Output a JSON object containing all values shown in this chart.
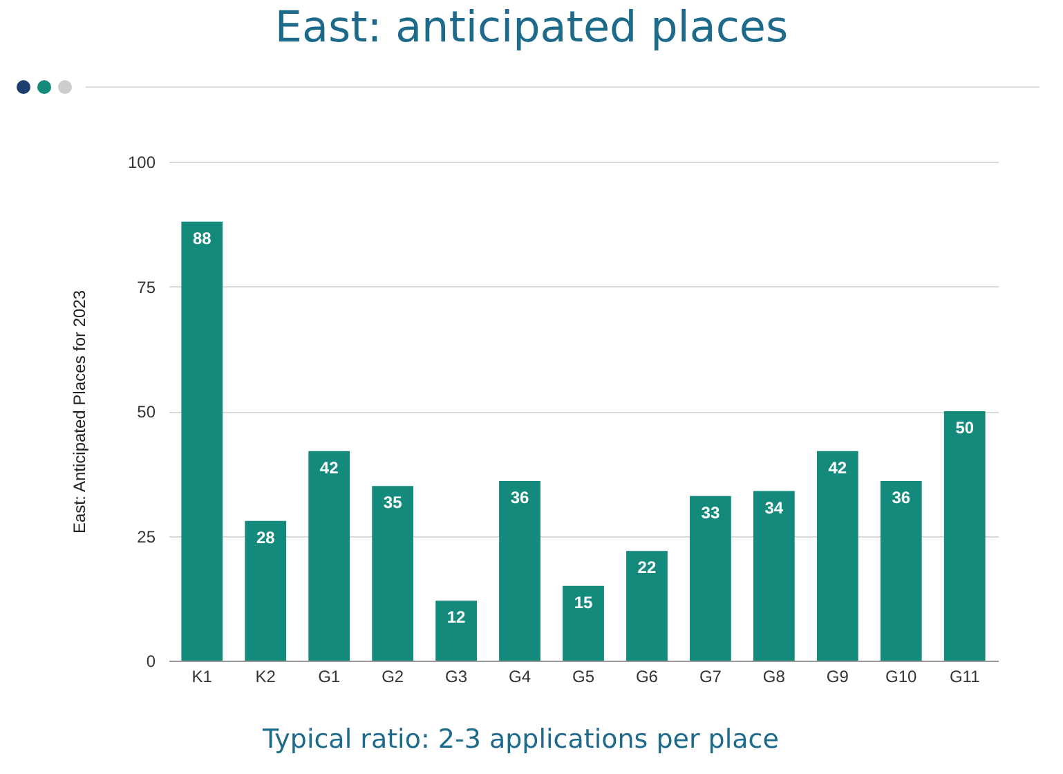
{
  "chart_data": {
    "type": "bar",
    "title": "East: anticipated places",
    "ylabel": "East: Anticipated Places for 2023",
    "categories": [
      "K1",
      "K2",
      "G1",
      "G2",
      "G3",
      "G4",
      "G5",
      "G6",
      "G7",
      "G8",
      "G9",
      "G10",
      "G11"
    ],
    "values": [
      88,
      28,
      42,
      35,
      12,
      36,
      15,
      22,
      33,
      34,
      42,
      36,
      50
    ],
    "color": "#138a7c",
    "ylim": [
      0,
      100
    ],
    "yticks": [
      0,
      25,
      50,
      75,
      100
    ],
    "grid": "y",
    "data_labels": true,
    "annotations": [
      "Typical ratio: 2-3 applications per place"
    ]
  }
}
